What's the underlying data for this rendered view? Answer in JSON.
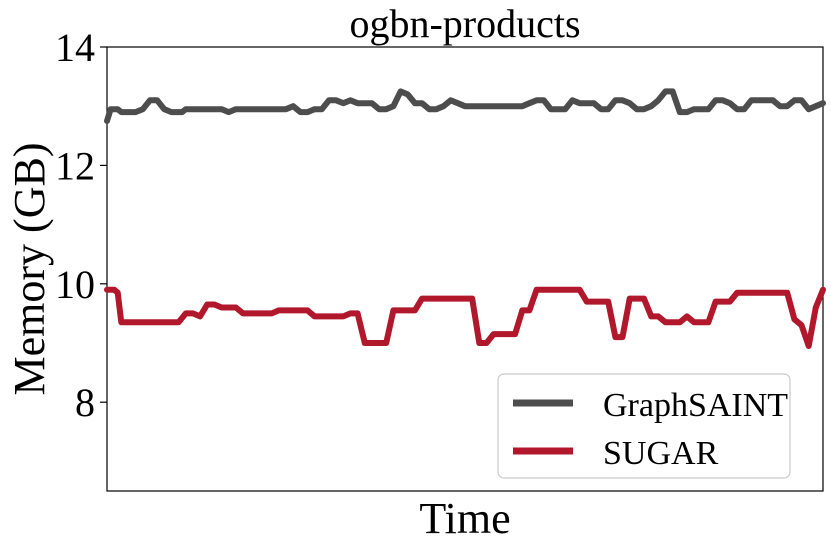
{
  "chart_data": {
    "type": "line",
    "title": "ogbn-products",
    "xlabel": "Time",
    "ylabel": "Memory (GB)",
    "xlim": [
      0,
      100
    ],
    "ylim": [
      6.5,
      14
    ],
    "yticks": [
      8,
      10,
      12,
      14
    ],
    "ytick_labels": [
      "8",
      "10",
      "12",
      "14"
    ],
    "grid": false,
    "legend_position": "lower-right",
    "series": [
      {
        "name": "GraphSAINT",
        "color": "#4d4d4d",
        "x": [
          0,
          0.5,
          1.5,
          2,
          4,
          5,
          6,
          7,
          8,
          9,
          10.5,
          11,
          13,
          14,
          16,
          17,
          18,
          19,
          20,
          21,
          22,
          23,
          24,
          25,
          26,
          27,
          28,
          29,
          30,
          31,
          32,
          33,
          34,
          35,
          36,
          37,
          38,
          39,
          40,
          41,
          42,
          43,
          44,
          45,
          46,
          47,
          48,
          49,
          50,
          51,
          52,
          53,
          54,
          55,
          56,
          57,
          58,
          59,
          60,
          61,
          62,
          63,
          64,
          65,
          66,
          67,
          68,
          69,
          70,
          71,
          72,
          73,
          74,
          75,
          76,
          77,
          78,
          79,
          80,
          81,
          82,
          83,
          84,
          85,
          86,
          87,
          88,
          89,
          90,
          91,
          92,
          93,
          94,
          95,
          96,
          97,
          98,
          99,
          100
        ],
        "y": [
          12.75,
          12.95,
          12.95,
          12.9,
          12.9,
          12.95,
          13.1,
          13.1,
          12.95,
          12.9,
          12.9,
          12.95,
          12.95,
          12.95,
          12.95,
          12.9,
          12.95,
          12.95,
          12.95,
          12.95,
          12.95,
          12.95,
          12.95,
          12.95,
          13.0,
          12.9,
          12.9,
          12.95,
          12.95,
          13.1,
          13.1,
          13.05,
          13.1,
          13.05,
          13.05,
          13.05,
          12.95,
          12.95,
          13.0,
          13.25,
          13.2,
          13.05,
          13.05,
          12.95,
          12.95,
          13.0,
          13.1,
          13.05,
          13.0,
          13.0,
          13.0,
          13.0,
          13.0,
          13.0,
          13.0,
          13.0,
          13.0,
          13.05,
          13.1,
          13.1,
          12.95,
          12.95,
          12.95,
          13.1,
          13.05,
          13.05,
          13.05,
          12.95,
          12.95,
          13.1,
          13.1,
          13.05,
          12.95,
          12.95,
          13.0,
          13.1,
          13.25,
          13.25,
          12.9,
          12.9,
          12.95,
          12.95,
          12.95,
          13.1,
          13.1,
          13.05,
          12.95,
          12.95,
          13.1,
          13.1,
          13.1,
          13.1,
          13.0,
          13.0,
          13.1,
          13.1,
          12.95,
          13.0,
          13.05
        ]
      },
      {
        "name": "SUGAR",
        "color": "#b2182b",
        "x": [
          0,
          1,
          1.5,
          2,
          3,
          6,
          10,
          11,
          12,
          13,
          14,
          15,
          16,
          17,
          18,
          19,
          20,
          21,
          22,
          23,
          24,
          25,
          26,
          27,
          28,
          29,
          30,
          31,
          32,
          33,
          34,
          35,
          36,
          37,
          38,
          39,
          40,
          41,
          42,
          43,
          44,
          45,
          46,
          47,
          48,
          49,
          50,
          51,
          52,
          53,
          54,
          55,
          56,
          57,
          58,
          59,
          60,
          61,
          62,
          63,
          64,
          65,
          66,
          67,
          68,
          69,
          70,
          71,
          72,
          73,
          74,
          75,
          76,
          77,
          78,
          79,
          80,
          81,
          82,
          83,
          84,
          85,
          86,
          87,
          88,
          89,
          90,
          91,
          92,
          93,
          94,
          95,
          96,
          97,
          98,
          99,
          100
        ],
        "y": [
          9.9,
          9.9,
          9.85,
          9.35,
          9.35,
          9.35,
          9.35,
          9.5,
          9.5,
          9.45,
          9.65,
          9.65,
          9.6,
          9.6,
          9.6,
          9.5,
          9.5,
          9.5,
          9.5,
          9.5,
          9.55,
          9.55,
          9.55,
          9.55,
          9.55,
          9.45,
          9.45,
          9.45,
          9.45,
          9.45,
          9.5,
          9.5,
          9.0,
          9.0,
          9.0,
          9.0,
          9.55,
          9.55,
          9.55,
          9.55,
          9.75,
          9.75,
          9.75,
          9.75,
          9.75,
          9.75,
          9.75,
          9.75,
          9.0,
          9.0,
          9.15,
          9.15,
          9.15,
          9.15,
          9.55,
          9.55,
          9.9,
          9.9,
          9.9,
          9.9,
          9.9,
          9.9,
          9.9,
          9.7,
          9.7,
          9.7,
          9.7,
          9.1,
          9.1,
          9.75,
          9.75,
          9.75,
          9.45,
          9.45,
          9.35,
          9.35,
          9.35,
          9.45,
          9.35,
          9.35,
          9.35,
          9.7,
          9.7,
          9.7,
          9.85,
          9.85,
          9.85,
          9.85,
          9.85,
          9.85,
          9.85,
          9.85,
          9.4,
          9.3,
          8.95,
          9.6,
          9.9
        ]
      }
    ]
  }
}
